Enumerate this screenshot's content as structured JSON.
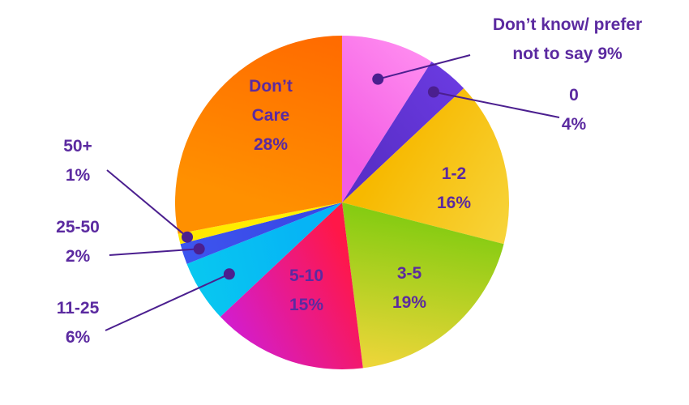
{
  "chart_data": {
    "type": "pie",
    "title": "",
    "slices": [
      {
        "label_lines": [
          "Don’t know/ prefer",
          "not to say 9%"
        ],
        "value": 9,
        "color": "#f35ce3",
        "color2": "#ff8cf0"
      },
      {
        "label_lines": [
          "0",
          "4%"
        ],
        "value": 4,
        "color": "#5a2fc9",
        "color2": "#6a3ae0"
      },
      {
        "label_lines": [
          "1-2",
          "16%"
        ],
        "value": 16,
        "color": "#f7b900",
        "color2": "#f7d43a"
      },
      {
        "label_lines": [
          "3-5",
          "19%"
        ],
        "value": 19,
        "color": "#86cc12",
        "color2": "#f0d63a"
      },
      {
        "label_lines": [
          "5-10",
          "15%"
        ],
        "value": 15,
        "color": "#ff1748",
        "color2": "#d21dd0"
      },
      {
        "label_lines": [
          "11-25",
          "6%"
        ],
        "value": 6,
        "color": "#06b4f5",
        "color2": "#08c8f0"
      },
      {
        "label_lines": [
          "25-50",
          "2%"
        ],
        "value": 2,
        "color": "#3949e6",
        "color2": "#3d55ef"
      },
      {
        "label_lines": [
          "50+",
          "1%"
        ],
        "value": 1,
        "color": "#fff200",
        "color2": "#ffe600"
      },
      {
        "label_lines": [
          "Don’t",
          "Care",
          "28%"
        ],
        "value": 28,
        "color": "#ff9000",
        "color2": "#ff6a00"
      }
    ],
    "label_color": "#5b2aa0",
    "leader_color": "#4b1f8f"
  }
}
